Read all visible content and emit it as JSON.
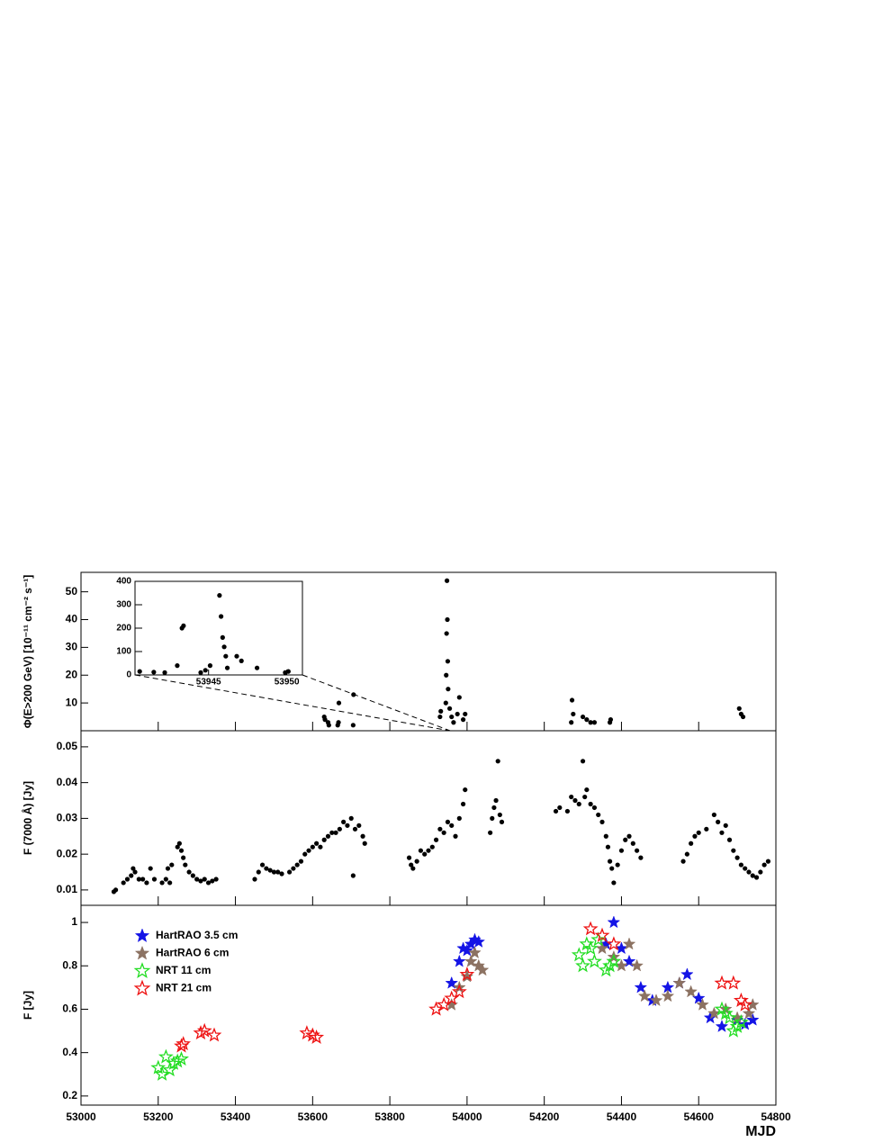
{
  "chart_data": [
    {
      "type": "scatter",
      "y_label": "Φ(E>200 GeV) [10⁻¹¹ cm⁻² s⁻¹]",
      "xlim": [
        53000,
        54800
      ],
      "ylim": [
        0,
        57
      ],
      "yticks": [
        10,
        20,
        30,
        40,
        50
      ],
      "color": "#000000",
      "x": [
        53630,
        53632,
        53640,
        53642,
        53665,
        53667,
        53668,
        53705,
        53706,
        53930,
        53932,
        53945,
        53946,
        53947,
        53948,
        53949,
        53950,
        53951,
        53955,
        53960,
        53965,
        53975,
        53980,
        53990,
        53995,
        54270,
        54272,
        54275,
        54300,
        54310,
        54320,
        54330,
        54370,
        54372,
        54705,
        54710,
        54715
      ],
      "values": [
        5,
        4,
        3,
        2,
        2,
        3,
        10,
        2,
        13,
        5,
        7,
        10,
        20,
        35,
        54,
        40,
        25,
        15,
        8,
        5,
        3,
        6,
        12,
        4,
        6,
        3,
        11,
        6,
        5,
        4,
        3,
        3,
        3,
        4,
        8,
        6,
        5
      ]
    },
    {
      "type": "scatter",
      "xlim": [
        53940.3,
        53951
      ],
      "ylim": [
        0,
        400
      ],
      "xticks": [
        53945,
        53950
      ],
      "yticks": [
        0,
        100,
        200,
        300,
        400
      ],
      "color": "#000000",
      "x": [
        53940.6,
        53941.5,
        53942.2,
        53943,
        53943.3,
        53943.4,
        53944.5,
        53944.8,
        53945.1,
        53945.7,
        53945.8,
        53945.9,
        53946,
        53946.1,
        53946.2,
        53946.8,
        53947.1,
        53948.1,
        53949.9,
        53950.1
      ],
      "values": [
        15,
        12,
        10,
        40,
        200,
        210,
        10,
        20,
        40,
        340,
        250,
        160,
        120,
        80,
        30,
        80,
        60,
        30,
        10,
        15
      ]
    },
    {
      "type": "scatter",
      "y_label": "F (7000 Å) [Jy]",
      "xlim": [
        53000,
        54800
      ],
      "ylim": [
        0.0057,
        0.0545
      ],
      "yticks": [
        0.01,
        0.02,
        0.03,
        0.04,
        0.05
      ],
      "color": "#000000",
      "x": [
        53085,
        53090,
        53110,
        53120,
        53130,
        53135,
        53140,
        53150,
        53160,
        53170,
        53180,
        53190,
        53210,
        53220,
        53225,
        53230,
        53235,
        53250,
        53255,
        53260,
        53265,
        53270,
        53280,
        53290,
        53300,
        53310,
        53320,
        53330,
        53340,
        53350,
        53450,
        53460,
        53470,
        53480,
        53490,
        53500,
        53510,
        53520,
        53540,
        53550,
        53560,
        53570,
        53580,
        53590,
        53600,
        53610,
        53620,
        53630,
        53640,
        53650,
        53660,
        53670,
        53680,
        53690,
        53700,
        53705,
        53710,
        53720,
        53730,
        53735,
        53850,
        53855,
        53860,
        53870,
        53880,
        53890,
        53900,
        53910,
        53920,
        53930,
        53940,
        53950,
        53960,
        53970,
        53980,
        53990,
        53995,
        54060,
        54065,
        54070,
        54075,
        54080,
        54085,
        54090,
        54230,
        54240,
        54260,
        54270,
        54280,
        54290,
        54300,
        54305,
        54310,
        54320,
        54330,
        54340,
        54350,
        54360,
        54365,
        54370,
        54375,
        54380,
        54390,
        54400,
        54410,
        54420,
        54430,
        54440,
        54450,
        54560,
        54570,
        54580,
        54590,
        54600,
        54620,
        54640,
        54650,
        54660,
        54670,
        54680,
        54690,
        54700,
        54710,
        54720,
        54730,
        54740,
        54750,
        54760,
        54770,
        54780
      ],
      "values": [
        0.0095,
        0.01,
        0.012,
        0.013,
        0.014,
        0.016,
        0.015,
        0.013,
        0.013,
        0.012,
        0.016,
        0.013,
        0.012,
        0.013,
        0.016,
        0.012,
        0.017,
        0.022,
        0.023,
        0.021,
        0.019,
        0.017,
        0.015,
        0.014,
        0.013,
        0.0125,
        0.013,
        0.012,
        0.0125,
        0.013,
        0.013,
        0.015,
        0.017,
        0.016,
        0.0155,
        0.015,
        0.015,
        0.0145,
        0.015,
        0.016,
        0.017,
        0.018,
        0.02,
        0.021,
        0.022,
        0.023,
        0.022,
        0.024,
        0.025,
        0.026,
        0.026,
        0.027,
        0.029,
        0.028,
        0.03,
        0.014,
        0.027,
        0.028,
        0.025,
        0.023,
        0.019,
        0.017,
        0.016,
        0.018,
        0.021,
        0.02,
        0.021,
        0.022,
        0.024,
        0.027,
        0.026,
        0.029,
        0.028,
        0.025,
        0.03,
        0.034,
        0.038,
        0.026,
        0.03,
        0.033,
        0.035,
        0.046,
        0.031,
        0.029,
        0.032,
        0.033,
        0.032,
        0.036,
        0.035,
        0.034,
        0.046,
        0.036,
        0.038,
        0.034,
        0.033,
        0.031,
        0.029,
        0.025,
        0.022,
        0.018,
        0.016,
        0.012,
        0.017,
        0.021,
        0.024,
        0.025,
        0.023,
        0.021,
        0.019,
        0.018,
        0.02,
        0.023,
        0.025,
        0.026,
        0.027,
        0.031,
        0.029,
        0.026,
        0.028,
        0.024,
        0.021,
        0.019,
        0.017,
        0.016,
        0.015,
        0.014,
        0.0135,
        0.015,
        0.017,
        0.018
      ]
    },
    {
      "type": "scatter",
      "y_label": "F [Jy]",
      "x_label": "MJD",
      "xlim": [
        53000,
        54800
      ],
      "ylim": [
        0.158,
        1.079
      ],
      "yticks": [
        0.2,
        0.4,
        0.6,
        0.8,
        1
      ],
      "xticks": [
        53000,
        53200,
        53400,
        53600,
        53800,
        54000,
        54200,
        54400,
        54600,
        54800
      ],
      "series": [
        {
          "name": "HartRAO 3.5 cm",
          "color": "#1414e6",
          "filled": true,
          "x": [
            53960,
            53980,
            53990,
            54000,
            54010,
            54020,
            54030,
            54360,
            54380,
            54400,
            54420,
            54450,
            54480,
            54520,
            54550,
            54570,
            54600,
            54630,
            54660,
            54700,
            54720,
            54740
          ],
          "values": [
            0.72,
            0.82,
            0.88,
            0.87,
            0.9,
            0.92,
            0.91,
            0.9,
            1,
            0.88,
            0.82,
            0.7,
            0.64,
            0.7,
            0.72,
            0.76,
            0.65,
            0.56,
            0.52,
            0.55,
            0.53,
            0.55
          ]
        },
        {
          "name": "HartRAO 6 cm",
          "color": "#8c7262",
          "filled": true,
          "x": [
            53960,
            53980,
            54000,
            54010,
            54020,
            54030,
            54040,
            54350,
            54380,
            54400,
            54420,
            54440,
            54460,
            54490,
            54520,
            54550,
            54580,
            54610,
            54640,
            54670,
            54700,
            54730,
            54740
          ],
          "values": [
            0.62,
            0.7,
            0.75,
            0.82,
            0.86,
            0.8,
            0.78,
            0.88,
            0.84,
            0.8,
            0.9,
            0.8,
            0.66,
            0.64,
            0.66,
            0.72,
            0.68,
            0.62,
            0.58,
            0.6,
            0.56,
            0.58,
            0.62
          ]
        },
        {
          "name": "NRT 11 cm",
          "color": "#22dd22",
          "filled": false,
          "x": [
            53200,
            53210,
            53220,
            53230,
            53240,
            53250,
            53260,
            54290,
            54300,
            54310,
            54320,
            54330,
            54340,
            54360,
            54370,
            54380,
            54660,
            54670,
            54680,
            54690,
            54700,
            54710
          ],
          "values": [
            0.33,
            0.3,
            0.38,
            0.32,
            0.35,
            0.36,
            0.37,
            0.85,
            0.8,
            0.9,
            0.88,
            0.82,
            0.92,
            0.78,
            0.8,
            0.82,
            0.6,
            0.58,
            0.56,
            0.5,
            0.52,
            0.54
          ]
        },
        {
          "name": "NRT 21 cm",
          "color": "#ee1111",
          "filled": false,
          "x": [
            53260,
            53265,
            53310,
            53320,
            53345,
            53585,
            53600,
            53610,
            53920,
            53940,
            53960,
            53980,
            54000,
            54320,
            54350,
            54380,
            54660,
            54690,
            54710,
            54720
          ],
          "values": [
            0.43,
            0.44,
            0.49,
            0.5,
            0.48,
            0.49,
            0.48,
            0.47,
            0.6,
            0.62,
            0.65,
            0.68,
            0.76,
            0.97,
            0.94,
            0.9,
            0.72,
            0.72,
            0.64,
            0.62
          ]
        }
      ]
    }
  ]
}
